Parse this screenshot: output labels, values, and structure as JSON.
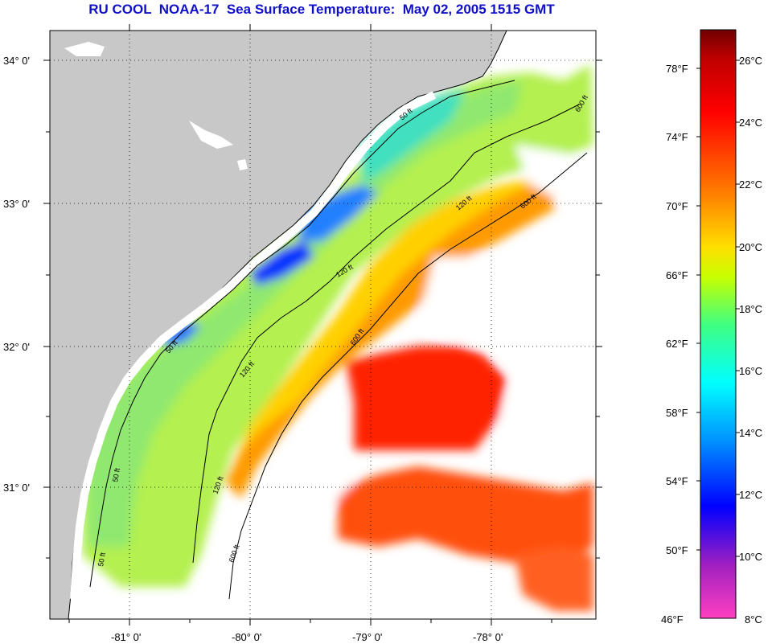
{
  "title": "RU COOL  NOAA-17  Sea Surface Temperature:  May 02, 2005 1515 GMT",
  "map": {
    "lat_labels": [
      "34° 0'",
      "33° 0'",
      "32° 0'",
      "31° 0'"
    ],
    "lon_labels": [
      "-81° 0'",
      "-80° 0'",
      "-79° 0'",
      "-78° 0'"
    ],
    "contour_labels": {
      "c50a": "50 ft",
      "c50b": "50 ft",
      "c50c": "50 ft",
      "c50d": "50 ft",
      "c120a": "120 ft",
      "c120b": "120 ft",
      "c120c": "120 ft",
      "c120d": "120 ft",
      "c600a": "600 ft",
      "c600b": "600 ft",
      "c600c": "600 ft",
      "c600d": "600 ft"
    },
    "colors": {
      "land": "#c8c8c8",
      "nodata": "#ffffff",
      "coast": "#000000"
    }
  },
  "colorbar": {
    "fahrenheit": [
      "78°F",
      "74°F",
      "70°F",
      "66°F",
      "62°F",
      "58°F",
      "54°F",
      "50°F",
      "46°F"
    ],
    "celsius": [
      "26°C",
      "24°C",
      "22°C",
      "20°C",
      "18°C",
      "16°C",
      "14°C",
      "12°C",
      "10°C",
      "8°C"
    ],
    "stops": [
      "#ff40c0",
      "#a020c0",
      "#0000ff",
      "#0090ff",
      "#00ffff",
      "#40ff80",
      "#c8ff00",
      "#ffe000",
      "#ff8000",
      "#ff0000",
      "#c00000",
      "#700000"
    ]
  }
}
